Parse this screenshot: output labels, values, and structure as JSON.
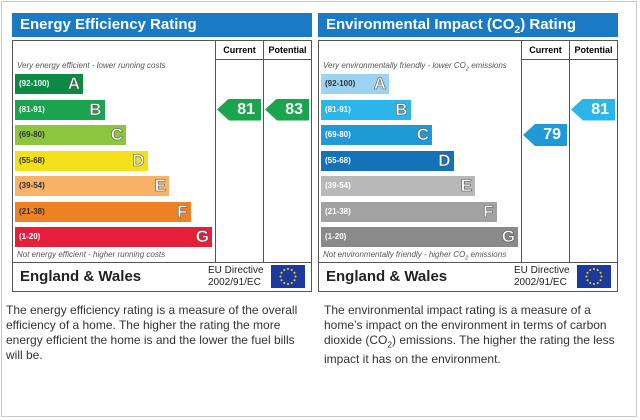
{
  "energy": {
    "title": "Energy Efficiency Rating",
    "current_header": "Current",
    "potential_header": "Potential",
    "top_caption": "Very energy efficient - lower running costs",
    "bottom_caption": "Not energy efficient - higher running costs",
    "bands": [
      {
        "range": "(92-100)",
        "letter": "A",
        "color": "#0c8a43"
      },
      {
        "range": "(81-91)",
        "letter": "B",
        "color": "#1ba44e"
      },
      {
        "range": "(69-80)",
        "letter": "C",
        "color": "#8cc63e"
      },
      {
        "range": "(55-68)",
        "letter": "D",
        "color": "#f4e01a"
      },
      {
        "range": "(39-54)",
        "letter": "E",
        "color": "#f7b267"
      },
      {
        "range": "(21-38)",
        "letter": "F",
        "color": "#ef8125"
      },
      {
        "range": "(1-20)",
        "letter": "G",
        "color": "#e51e3a"
      }
    ],
    "current": {
      "value": "81",
      "band_index": 1,
      "color": "#1ba44e"
    },
    "potential": {
      "value": "83",
      "band_index": 1,
      "color": "#1ba44e"
    },
    "footer_region": "England & Wales",
    "directive_line1": "EU Directive",
    "directive_line2": "2002/91/EC",
    "description": "The energy efficiency rating is a measure of the overall efficiency of a home. The higher the rating the more energy efficient the home is and the lower the fuel bills will be."
  },
  "environment": {
    "title_main": "Environmental Impact (CO",
    "title_sub": "2",
    "title_end": ") Rating",
    "current_header": "Current",
    "potential_header": "Potential",
    "top_caption_main": "Very environmentally friendly - lower CO",
    "top_caption_sub": "2",
    "top_caption_end": " emissions",
    "bottom_caption_main": "Not environmentally friendly - higher CO",
    "bottom_caption_sub": "2",
    "bottom_caption_end": " emissions",
    "bands": [
      {
        "range": "(92-100)",
        "letter": "A",
        "color": "#9bd3f1"
      },
      {
        "range": "(81-91)",
        "letter": "B",
        "color": "#2cb5e8"
      },
      {
        "range": "(69-80)",
        "letter": "C",
        "color": "#1f9ad6"
      },
      {
        "range": "(55-68)",
        "letter": "D",
        "color": "#1473b8"
      },
      {
        "range": "(39-54)",
        "letter": "E",
        "color": "#b8b8b8"
      },
      {
        "range": "(21-38)",
        "letter": "F",
        "color": "#a2a2a2"
      },
      {
        "range": "(1-20)",
        "letter": "G",
        "color": "#8a8a8a"
      }
    ],
    "current": {
      "value": "79",
      "band_index": 2,
      "color": "#1f9ad6"
    },
    "potential": {
      "value": "81",
      "band_index": 1,
      "color": "#2cb5e8"
    },
    "footer_region": "England & Wales",
    "directive_line1": "EU Directive",
    "directive_line2": "2002/91/EC",
    "description_1": "The environmental impact rating is a measure of a home’s impact on the environment in terms of carbon dioxide (CO",
    "description_sub": "2",
    "description_2": ") emissions. The higher the rating the less impact it has on the environment."
  },
  "icons": {
    "eu_flag": "eu-flag-icon"
  }
}
